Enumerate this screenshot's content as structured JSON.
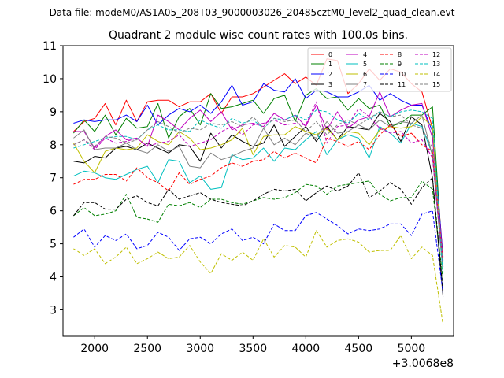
{
  "chart_data": {
    "type": "line",
    "suptitle": "Data file: modeM0/AS1A05_208T03_9000003026_20485cztM0_level2_quad_clean.evt",
    "title": "Quadrant 2 module wise count rates with 100.0s bins.",
    "xlabel": "",
    "ylabel": "",
    "x_offset_label": "+3.0068e8",
    "xlim": [
      1700,
      5400
    ],
    "ylim": [
      2.2,
      11
    ],
    "xticks": [
      2000,
      2500,
      3000,
      3500,
      4000,
      4500,
      5000
    ],
    "yticks": [
      3,
      4,
      5,
      6,
      7,
      8,
      9,
      10,
      11
    ],
    "x": [
      1800,
      1900,
      2000,
      2100,
      2200,
      2300,
      2400,
      2500,
      2600,
      2700,
      2800,
      2900,
      3000,
      3100,
      3200,
      3300,
      3400,
      3500,
      3600,
      3700,
      3800,
      3900,
      4000,
      4100,
      4200,
      4300,
      4400,
      4500,
      4600,
      4700,
      4800,
      4900,
      5000,
      5100,
      5200,
      5300
    ],
    "legend_position": "top-right",
    "series": [
      {
        "name": "0",
        "color": "#ff0000",
        "dash": "solid",
        "values": [
          8.4,
          8.7,
          8.8,
          9.25,
          8.6,
          9.35,
          8.7,
          9.3,
          9.35,
          9.35,
          9.15,
          9.3,
          9.3,
          9.55,
          8.95,
          9.45,
          9.45,
          9.55,
          9.75,
          9.95,
          10.15,
          9.85,
          10.05,
          9.8,
          10.6,
          10.55,
          9.55,
          9.85,
          10.3,
          9.95,
          10.3,
          10.2,
          9.85,
          9.6,
          8.5,
          4.6
        ]
      },
      {
        "name": "1",
        "color": "#008000",
        "dash": "solid",
        "values": [
          8.35,
          8.75,
          8.4,
          8.9,
          8.3,
          8.8,
          8.5,
          8.55,
          9.25,
          8.2,
          8.85,
          9.1,
          8.6,
          9.55,
          9.1,
          9.15,
          9.25,
          9.35,
          8.95,
          9.4,
          9.5,
          8.7,
          9.5,
          9.7,
          9.4,
          9.45,
          9.05,
          9.4,
          9.1,
          9.2,
          8.55,
          8.65,
          8.9,
          8.9,
          9.15,
          4.3
        ]
      },
      {
        "name": "2",
        "color": "#0000ff",
        "dash": "solid",
        "values": [
          8.65,
          8.75,
          8.7,
          8.75,
          8.75,
          8.9,
          8.7,
          9.2,
          8.6,
          8.9,
          9.1,
          9.0,
          9.2,
          8.95,
          9.3,
          9.8,
          9.2,
          9.3,
          9.85,
          9.65,
          9.6,
          10.0,
          9.4,
          9.65,
          9.6,
          9.45,
          9.45,
          9.6,
          9.8,
          9.35,
          9.55,
          9.35,
          9.2,
          9.2,
          8.4,
          4.6
        ]
      },
      {
        "name": "3",
        "color": "#000000",
        "dash": "solid",
        "values": [
          7.5,
          7.45,
          7.65,
          7.6,
          7.9,
          7.95,
          7.85,
          8.05,
          7.9,
          7.75,
          8.0,
          7.95,
          7.5,
          8.35,
          7.9,
          8.3,
          8.1,
          7.95,
          8.05,
          8.6,
          7.95,
          8.25,
          8.55,
          8.1,
          8.55,
          8.15,
          8.55,
          8.5,
          8.45,
          8.95,
          8.7,
          8.1,
          8.85,
          8.6,
          7.0,
          3.4
        ]
      },
      {
        "name": "4",
        "color": "#bf00bf",
        "dash": "solid",
        "values": [
          8.4,
          8.4,
          7.9,
          8.25,
          8.45,
          8.15,
          8.2,
          7.95,
          8.9,
          8.7,
          8.45,
          8.8,
          9.05,
          8.7,
          9.0,
          8.45,
          8.6,
          8.65,
          8.55,
          8.95,
          8.75,
          8.9,
          8.55,
          9.2,
          8.45,
          9.0,
          8.5,
          8.75,
          8.85,
          9.6,
          8.85,
          9.05,
          9.2,
          9.25,
          8.2,
          4.5
        ]
      },
      {
        "name": "5",
        "color": "#00bfbf",
        "dash": "solid",
        "values": [
          7.05,
          7.2,
          7.15,
          7.0,
          6.95,
          7.1,
          7.25,
          7.35,
          6.85,
          7.55,
          7.5,
          6.85,
          7.05,
          6.65,
          6.7,
          7.7,
          7.55,
          7.6,
          7.9,
          7.5,
          7.9,
          7.85,
          8.15,
          8.4,
          7.7,
          8.15,
          8.3,
          8.2,
          7.6,
          8.55,
          8.35,
          8.05,
          8.65,
          8.55,
          7.7,
          4.1
        ]
      },
      {
        "name": "6",
        "color": "#bfbf00",
        "dash": "solid",
        "values": [
          8.05,
          7.5,
          7.15,
          7.8,
          7.9,
          7.85,
          7.9,
          8.3,
          8.1,
          8.0,
          8.4,
          8.2,
          7.85,
          7.9,
          8.0,
          8.15,
          8.5,
          7.7,
          8.25,
          8.3,
          8.3,
          8.55,
          8.4,
          8.3,
          8.5,
          8.15,
          8.4,
          8.35,
          8.0,
          8.45,
          8.55,
          8.5,
          8.55,
          8.85,
          8.55,
          4.15
        ]
      },
      {
        "name": "7",
        "color": "#808080",
        "dash": "solid",
        "values": [
          8.2,
          8.45,
          7.85,
          7.9,
          7.9,
          8.05,
          7.85,
          7.75,
          8.0,
          7.8,
          7.95,
          7.35,
          7.3,
          7.75,
          7.55,
          7.65,
          7.8,
          7.9,
          8.5,
          8.0,
          8.2,
          8.0,
          8.35,
          8.2,
          8.7,
          8.35,
          8.4,
          8.6,
          8.45,
          8.75,
          8.55,
          8.7,
          8.65,
          8.9,
          7.65,
          4.15
        ]
      },
      {
        "name": "8",
        "color": "#ff0000",
        "dash": "dashed",
        "values": [
          6.8,
          6.95,
          6.95,
          7.1,
          7.1,
          6.9,
          7.3,
          7.0,
          6.85,
          6.6,
          7.15,
          6.8,
          6.95,
          7.05,
          7.3,
          7.45,
          7.35,
          7.5,
          7.55,
          7.8,
          7.6,
          7.75,
          7.6,
          7.45,
          8.2,
          8.1,
          7.95,
          8.1,
          7.85,
          8.3,
          8.6,
          8.25,
          8.35,
          8.0,
          7.8,
          4.4
        ]
      },
      {
        "name": "9",
        "color": "#008000",
        "dash": "dashed",
        "values": [
          5.85,
          6.1,
          5.85,
          5.9,
          6.0,
          6.5,
          5.8,
          5.75,
          5.65,
          6.2,
          6.15,
          6.25,
          6.1,
          6.35,
          6.35,
          6.25,
          6.2,
          6.3,
          6.4,
          6.35,
          6.4,
          6.55,
          6.8,
          6.75,
          6.5,
          6.75,
          6.8,
          6.85,
          6.9,
          6.5,
          6.3,
          6.4,
          6.4,
          6.9,
          6.65,
          3.9
        ]
      },
      {
        "name": "10",
        "color": "#0000ff",
        "dash": "dashed",
        "values": [
          5.2,
          5.45,
          4.9,
          5.25,
          5.1,
          5.3,
          4.85,
          4.95,
          5.35,
          5.2,
          4.8,
          5.15,
          5.2,
          5.0,
          5.3,
          5.45,
          5.1,
          5.2,
          5.0,
          5.6,
          5.4,
          5.4,
          5.85,
          5.95,
          5.75,
          5.55,
          5.3,
          5.45,
          5.4,
          5.45,
          5.6,
          5.6,
          5.25,
          5.9,
          6.0,
          3.5
        ]
      },
      {
        "name": "11",
        "color": "#000000",
        "dash": "dashed",
        "values": [
          5.85,
          6.25,
          6.25,
          6.05,
          6.05,
          6.35,
          6.45,
          6.25,
          6.15,
          6.65,
          6.35,
          6.45,
          6.55,
          6.35,
          6.25,
          6.2,
          6.15,
          6.3,
          6.5,
          6.65,
          6.6,
          6.65,
          6.3,
          6.55,
          6.75,
          6.6,
          6.75,
          7.15,
          6.4,
          6.6,
          6.85,
          6.65,
          6.2,
          6.7,
          7.0,
          3.6
        ]
      },
      {
        "name": "12",
        "color": "#bf00bf",
        "dash": "dashed",
        "values": [
          8.0,
          8.15,
          7.85,
          8.2,
          8.05,
          8.1,
          8.2,
          7.95,
          8.05,
          8.1,
          8.3,
          7.95,
          8.05,
          8.15,
          8.4,
          8.55,
          8.3,
          8.6,
          8.65,
          8.75,
          8.6,
          8.65,
          8.6,
          9.3,
          8.05,
          8.55,
          8.6,
          9.1,
          8.85,
          8.5,
          8.35,
          8.4,
          8.05,
          8.15,
          7.6,
          4.3
        ]
      },
      {
        "name": "13",
        "color": "#00bfbf",
        "dash": "dashed",
        "values": [
          7.9,
          8.0,
          8.1,
          8.2,
          8.25,
          8.25,
          8.15,
          8.45,
          8.6,
          8.45,
          8.45,
          8.4,
          8.75,
          8.6,
          8.5,
          8.8,
          8.65,
          8.75,
          8.5,
          8.8,
          8.75,
          8.9,
          8.75,
          9.05,
          9.0,
          8.75,
          8.65,
          8.95,
          8.75,
          9.0,
          8.85,
          9.0,
          9.05,
          9.0,
          8.8,
          4.05
        ]
      },
      {
        "name": "14",
        "color": "#bfbf00",
        "dash": "dashed",
        "values": [
          4.85,
          4.65,
          4.85,
          4.4,
          4.6,
          4.9,
          4.4,
          4.55,
          4.75,
          4.55,
          4.6,
          4.95,
          4.45,
          4.1,
          4.7,
          4.5,
          4.75,
          4.5,
          5.15,
          4.6,
          4.95,
          4.9,
          4.6,
          5.4,
          4.9,
          5.1,
          5.15,
          5.05,
          4.75,
          4.8,
          4.8,
          5.25,
          4.55,
          4.9,
          4.65,
          2.55
        ]
      },
      {
        "name": "15",
        "color": "#808080",
        "dash": "dashed",
        "values": [
          8.0,
          8.15,
          7.95,
          8.25,
          8.2,
          8.05,
          8.15,
          8.45,
          8.7,
          8.55,
          8.35,
          8.5,
          8.45,
          8.65,
          8.6,
          8.7,
          8.55,
          8.85,
          8.5,
          8.8,
          8.7,
          8.75,
          8.4,
          8.7,
          8.3,
          8.6,
          8.75,
          8.6,
          8.8,
          9.0,
          8.85,
          8.9,
          8.6,
          8.5,
          7.9,
          4.5
        ]
      }
    ]
  }
}
